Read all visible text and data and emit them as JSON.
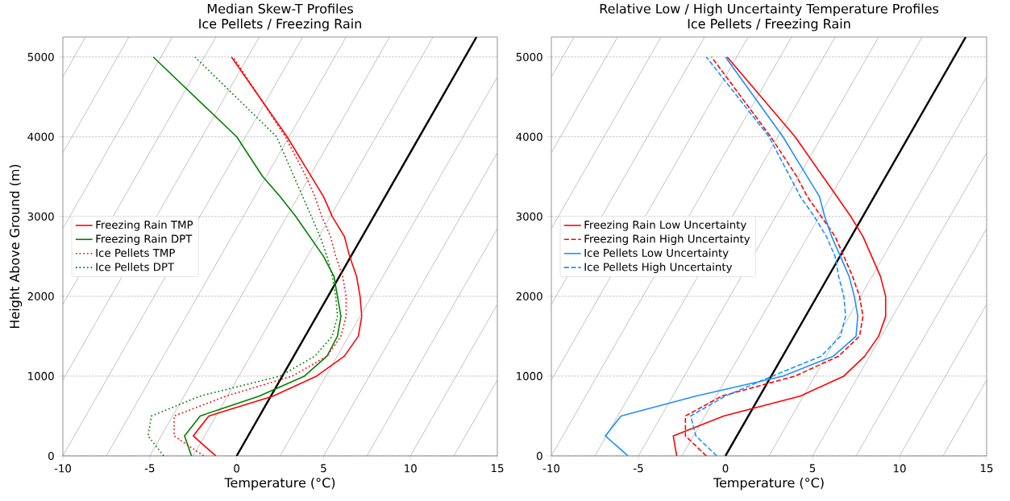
{
  "chart_data": [
    {
      "type": "line",
      "title": "Median Skew-T Profiles",
      "subtitle": "Ice Pellets / Freezing Rain",
      "xlabel": "Temperature (°C)",
      "ylabel": "Height Above Ground (m)",
      "xlim": [
        -10,
        15
      ],
      "ylim": [
        0,
        5250
      ],
      "xticks": [
        -10,
        -5,
        0,
        5,
        10,
        15
      ],
      "yticks": [
        0,
        1000,
        2000,
        3000,
        4000,
        5000
      ],
      "grid": "y",
      "legend": "left",
      "line_style": "solid",
      "series": [
        {
          "x": [
            -10,
            -8.7
          ],
          "values": [
            4750,
            5250
          ],
          "color": "#999999"
        },
        {
          "x": [
            -10,
            -6.2
          ],
          "values": [
            3800,
            5250
          ],
          "color": "#999999"
        },
        {
          "x": [
            -10,
            -3.7
          ],
          "values": [
            2850,
            5250
          ],
          "color": "#999999"
        },
        {
          "x": [
            -10,
            -1.2
          ],
          "values": [
            1900,
            5250
          ],
          "color": "#999999"
        },
        {
          "x": [
            -10,
            1.3
          ],
          "values": [
            950,
            5250
          ],
          "color": "#999999"
        },
        {
          "x": [
            -10,
            3.8
          ],
          "values": [
            0,
            5250
          ],
          "color": "#999999"
        },
        {
          "x": [
            -7.5,
            6.3
          ],
          "values": [
            0,
            5250
          ],
          "color": "#999999"
        },
        {
          "x": [
            -5,
            8.8
          ],
          "values": [
            0,
            5250
          ],
          "color": "#999999"
        },
        {
          "x": [
            -2.5,
            11.3
          ],
          "values": [
            0,
            5250
          ],
          "color": "#999999"
        },
        {
          "x": [
            2.5,
            15
          ],
          "values": [
            0,
            4750
          ],
          "color": "#999999"
        },
        {
          "x": [
            5,
            15
          ],
          "values": [
            0,
            3800
          ],
          "color": "#999999"
        },
        {
          "x": [
            7.5,
            15
          ],
          "values": [
            0,
            2850
          ],
          "color": "#999999"
        },
        {
          "x": [
            10,
            15
          ],
          "values": [
            0,
            1900
          ],
          "color": "#999999"
        },
        {
          "x": [
            12.5,
            15
          ],
          "values": [
            0,
            950
          ],
          "color": "#999999"
        },
        {
          "x": [
            0,
            13.8
          ],
          "values": [
            0,
            5250
          ],
          "color": "#000000"
        },
        {
          "name": "Freezing Rain TMP",
          "color": "#ff0000",
          "line_style": "solid",
          "x": [
            -1.2,
            -2.5,
            -1.6,
            2.1,
            4.6,
            6.2,
            7.0,
            7.2,
            7.1,
            6.9,
            6.5,
            6.2,
            5.5,
            5.0,
            4.3,
            2.9,
            -0.3
          ],
          "values": [
            0,
            250,
            500,
            750,
            1000,
            1250,
            1500,
            1750,
            2000,
            2250,
            2500,
            2750,
            3000,
            3250,
            3500,
            4000,
            5000
          ]
        },
        {
          "name": "Freezing Rain DPT",
          "color": "#008000",
          "line_style": "solid",
          "x": [
            -2.6,
            -3.0,
            -2.1,
            1.3,
            3.9,
            5.2,
            5.8,
            6.0,
            5.8,
            5.6,
            5.0,
            4.2,
            3.4,
            2.5,
            1.5,
            0.0,
            -4.8
          ],
          "values": [
            0,
            250,
            500,
            750,
            1000,
            1250,
            1500,
            1750,
            2000,
            2250,
            2500,
            2750,
            3000,
            3250,
            3500,
            4000,
            5000
          ]
        },
        {
          "name": "Ice Pellets TMP",
          "color": "#ff0000",
          "line_style": "dotted",
          "x": [
            -1.9,
            -3.6,
            -3.6,
            -0.6,
            3.2,
            5.2,
            6.0,
            6.3,
            6.3,
            6.1,
            5.7,
            5.4,
            4.9,
            4.5,
            4.0,
            2.8,
            -0.2
          ],
          "values": [
            0,
            250,
            500,
            750,
            1000,
            1250,
            1500,
            1750,
            2000,
            2250,
            2500,
            2750,
            3000,
            3250,
            3500,
            4000,
            5000
          ]
        },
        {
          "name": "Ice Pellets DPT",
          "color": "#008000",
          "line_style": "dotted",
          "x": [
            -4.2,
            -5.1,
            -4.9,
            -2.1,
            2.5,
            4.5,
            5.5,
            5.8,
            5.7,
            5.5,
            5.2,
            4.8,
            4.3,
            3.8,
            3.3,
            2.3,
            -2.4
          ],
          "values": [
            0,
            250,
            500,
            750,
            1000,
            1250,
            1500,
            1750,
            2000,
            2250,
            2500,
            2750,
            3000,
            3250,
            3500,
            4000,
            5000
          ]
        }
      ]
    },
    {
      "type": "line",
      "title": "Relative Low / High Uncertainty Temperature Profiles",
      "subtitle": "Ice Pellets / Freezing Rain",
      "xlabel": "Temperature (°C)",
      "xlim": [
        -10,
        15
      ],
      "ylim": [
        0,
        5250
      ],
      "xticks": [
        -10,
        -5,
        0,
        5,
        10,
        15
      ],
      "yticks": [
        0,
        1000,
        2000,
        3000,
        4000,
        5000
      ],
      "grid": "y",
      "legend": "left",
      "line_style": "solid",
      "series": [
        {
          "x": [
            -10,
            -8.7
          ],
          "values": [
            4750,
            5250
          ],
          "color": "#999999"
        },
        {
          "x": [
            -10,
            -6.2
          ],
          "values": [
            3800,
            5250
          ],
          "color": "#999999"
        },
        {
          "x": [
            -10,
            -3.7
          ],
          "values": [
            2850,
            5250
          ],
          "color": "#999999"
        },
        {
          "x": [
            -10,
            -1.2
          ],
          "values": [
            1900,
            5250
          ],
          "color": "#999999"
        },
        {
          "x": [
            -10,
            1.3
          ],
          "values": [
            950,
            5250
          ],
          "color": "#999999"
        },
        {
          "x": [
            -10,
            3.8
          ],
          "values": [
            0,
            5250
          ],
          "color": "#999999"
        },
        {
          "x": [
            -7.5,
            6.3
          ],
          "values": [
            0,
            5250
          ],
          "color": "#999999"
        },
        {
          "x": [
            -5,
            8.8
          ],
          "values": [
            0,
            5250
          ],
          "color": "#999999"
        },
        {
          "x": [
            -2.5,
            11.3
          ],
          "values": [
            0,
            5250
          ],
          "color": "#999999"
        },
        {
          "x": [
            2.5,
            15
          ],
          "values": [
            0,
            4750
          ],
          "color": "#999999"
        },
        {
          "x": [
            5,
            15
          ],
          "values": [
            0,
            3800
          ],
          "color": "#999999"
        },
        {
          "x": [
            7.5,
            15
          ],
          "values": [
            0,
            2850
          ],
          "color": "#999999"
        },
        {
          "x": [
            10,
            15
          ],
          "values": [
            0,
            1900
          ],
          "color": "#999999"
        },
        {
          "x": [
            12.5,
            15
          ],
          "values": [
            0,
            950
          ],
          "color": "#999999"
        },
        {
          "x": [
            0,
            13.8
          ],
          "values": [
            0,
            5250
          ],
          "color": "#000000"
        },
        {
          "name": "Freezing Rain Low Uncertainty",
          "color": "#ff0000",
          "line_style": "solid",
          "x": [
            -2.8,
            -3.0,
            -0.1,
            4.3,
            6.8,
            8.0,
            8.8,
            9.2,
            9.2,
            8.9,
            8.4,
            7.9,
            7.2,
            6.4,
            5.6,
            4.0,
            0.1
          ],
          "values": [
            0,
            250,
            500,
            750,
            1000,
            1250,
            1500,
            1750,
            2000,
            2250,
            2500,
            2750,
            3000,
            3250,
            3500,
            4000,
            5000
          ]
        },
        {
          "name": "Freezing Rain High Uncertainty",
          "color": "#ff0000",
          "line_style": "dashed",
          "x": [
            -1.1,
            -2.3,
            -2.3,
            -0.2,
            4.0,
            6.5,
            7.7,
            7.9,
            7.7,
            7.3,
            6.8,
            6.3,
            5.5,
            4.7,
            4.1,
            2.6,
            -0.8
          ],
          "values": [
            0,
            250,
            500,
            750,
            1000,
            1250,
            1500,
            1750,
            2000,
            2250,
            2500,
            2750,
            3000,
            3250,
            3500,
            4000,
            5000
          ]
        },
        {
          "name": "Ice Pellets Low Uncertainty",
          "color": "#1e90ff",
          "line_style": "solid",
          "x": [
            -5.6,
            -6.9,
            -6.0,
            -1.7,
            3.3,
            6.2,
            7.5,
            7.6,
            7.4,
            7.1,
            6.6,
            6.1,
            5.7,
            5.4,
            4.7,
            3.3,
            0.0
          ],
          "values": [
            0,
            250,
            500,
            750,
            1000,
            1250,
            1500,
            1750,
            2000,
            2250,
            2500,
            2750,
            3000,
            3250,
            3500,
            4000,
            5000
          ]
        },
        {
          "name": "Ice Pellets High Uncertainty",
          "color": "#1e90ff",
          "line_style": "dashed",
          "x": [
            -0.5,
            -1.7,
            -2.0,
            0.0,
            2.7,
            5.5,
            6.6,
            6.9,
            6.8,
            6.5,
            6.3,
            5.8,
            5.1,
            4.3,
            3.7,
            2.5,
            -1.1
          ],
          "values": [
            0,
            250,
            500,
            750,
            1000,
            1250,
            1500,
            1750,
            2000,
            2250,
            2500,
            2750,
            3000,
            3250,
            3500,
            4000,
            5000
          ]
        }
      ]
    }
  ]
}
